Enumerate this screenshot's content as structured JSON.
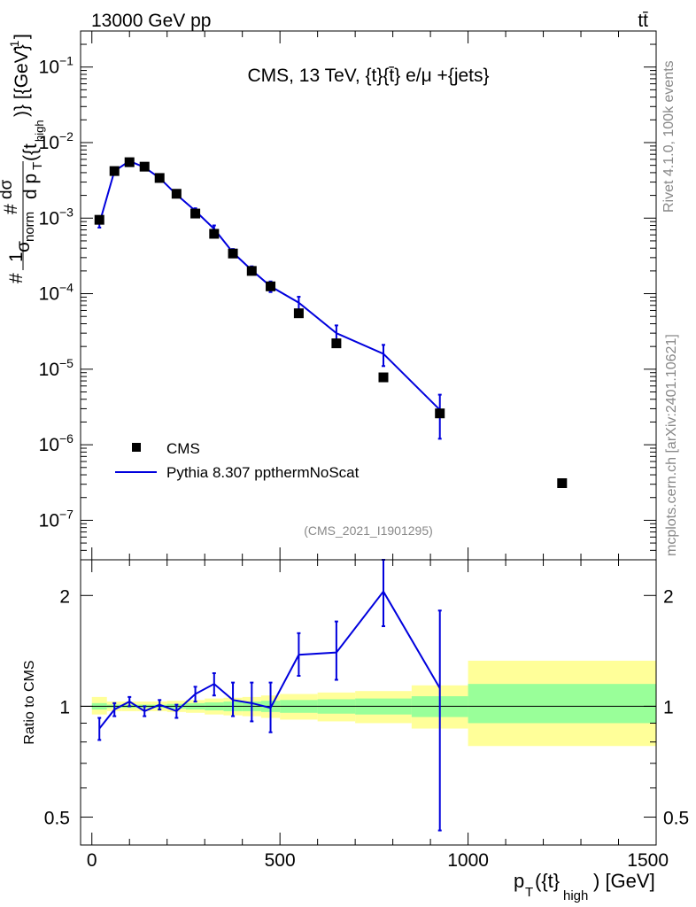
{
  "header": {
    "left": "13000 GeV pp",
    "right": "tt̄"
  },
  "side_labels": {
    "rivet": "Rivet 4.1.0,  100k events",
    "mcplots": "mcplots.cern.ch [arXiv:2401.10621]"
  },
  "chart_data": [
    {
      "type": "scatter",
      "panel": "main",
      "title": "CMS, 13 TeV, {t}{t̄} e/μ +{jets}",
      "analysis_tag": "(CMS_2021_I1901295)",
      "ylabel": "#1/σ_norm #dσ/d p_T({t}_high)} [{GeV}^-1]",
      "ylabel_parts": {
        "one": "1",
        "sigma": "σ",
        "norm": "norm",
        "dsigma": "dσ",
        "hash1": "#",
        "hash2": "#",
        "d": "d p",
        "T": "T",
        "arg": "({t",
        "high": "high",
        "tail": ")} [{GeV}",
        "exp": "-1",
        "close": "]"
      },
      "yscale": "log",
      "ylim": [
        3e-08,
        0.3
      ],
      "xlim": [
        -30,
        1500
      ],
      "y_ticks": [
        {
          "value": 1e-07,
          "base": "10",
          "exp": "−7"
        },
        {
          "value": 1e-06,
          "base": "10",
          "exp": "−6"
        },
        {
          "value": 1e-05,
          "base": "10",
          "exp": "−5"
        },
        {
          "value": 0.0001,
          "base": "10",
          "exp": "−4"
        },
        {
          "value": 0.001,
          "base": "10",
          "exp": "−3"
        },
        {
          "value": 0.01,
          "base": "10",
          "exp": "−2"
        },
        {
          "value": 0.1,
          "base": "10",
          "exp": "−1"
        }
      ],
      "legend": [
        {
          "label": "CMS",
          "marker": "square",
          "color": "#000000"
        },
        {
          "label": "Pythia 8.307 ppthermNoScat",
          "marker": "line",
          "color": "#0000dd"
        }
      ],
      "legend_position": "lower-left",
      "series": [
        {
          "name": "CMS",
          "color": "#000000",
          "x": [
            20,
            60,
            100,
            140,
            180,
            225,
            275,
            325,
            375,
            425,
            475,
            550,
            650,
            775,
            925,
            1250
          ],
          "y": [
            0.00095,
            0.0042,
            0.0055,
            0.0048,
            0.0034,
            0.0021,
            0.00115,
            0.00062,
            0.00034,
            0.0002,
            0.000125,
            5.5e-05,
            2.2e-05,
            7.8e-06,
            2.6e-06,
            3.1e-07
          ]
        },
        {
          "name": "Pythia 8.307 ppthermNoScat",
          "color": "#0000dd",
          "x": [
            20,
            60,
            100,
            140,
            180,
            225,
            275,
            325,
            375,
            425,
            475,
            550,
            650,
            775,
            925
          ],
          "y": [
            0.00085,
            0.0042,
            0.0057,
            0.0047,
            0.0034,
            0.00205,
            0.00125,
            0.00072,
            0.00035,
            0.000205,
            0.000125,
            7.6e-05,
            3e-05,
            1.6e-05,
            2.9e-06
          ],
          "err_low": [
            0.0001,
            0.0003,
            0.0003,
            0.0003,
            0.0002,
            0.00015,
            0.0001,
            8e-05,
            4e-05,
            2.5e-05,
            2e-05,
            1.5e-05,
            8e-06,
            5e-06,
            1.7e-06
          ],
          "err_high": [
            0.0001,
            0.0003,
            0.0003,
            0.0003,
            0.0002,
            0.00015,
            0.0001,
            8e-05,
            4e-05,
            2.5e-05,
            2e-05,
            1.5e-05,
            8e-06,
            5e-06,
            1.7e-06
          ]
        }
      ]
    },
    {
      "type": "line",
      "panel": "ratio",
      "ylabel": "Ratio to CMS",
      "xlabel": "p_T({t}_high) [GeV]",
      "xlabel_parts": {
        "p": "p",
        "T": "T",
        "arg": "({t}",
        "high": "high",
        "tail": ") [GeV]"
      },
      "yscale": "log",
      "ylim": [
        0.42,
        2.5
      ],
      "xlim": [
        -30,
        1500
      ],
      "x_ticks": [
        0,
        500,
        1000,
        1500
      ],
      "x_tick_labels": [
        "0",
        "500",
        "1000",
        "1500"
      ],
      "y_ticks": [
        0.5,
        1,
        2
      ],
      "y_tick_labels": [
        "0.5",
        "1",
        "2"
      ],
      "bin_edges": [
        0,
        40,
        80,
        120,
        160,
        200,
        250,
        300,
        350,
        400,
        450,
        500,
        600,
        700,
        850,
        1000,
        1500
      ],
      "band_inner_low": [
        0.98,
        0.99,
        0.99,
        0.99,
        0.99,
        0.985,
        0.98,
        0.975,
        0.97,
        0.97,
        0.965,
        0.96,
        0.955,
        0.95,
        0.935,
        0.9
      ],
      "band_inner_high": [
        1.02,
        1.01,
        1.01,
        1.01,
        1.01,
        1.015,
        1.02,
        1.025,
        1.03,
        1.03,
        1.035,
        1.04,
        1.045,
        1.05,
        1.065,
        1.15
      ],
      "band_outer_low": [
        0.95,
        0.97,
        0.97,
        0.97,
        0.97,
        0.965,
        0.96,
        0.95,
        0.945,
        0.94,
        0.93,
        0.92,
        0.91,
        0.9,
        0.87,
        0.78
      ],
      "band_outer_high": [
        1.06,
        1.03,
        1.03,
        1.03,
        1.03,
        1.035,
        1.04,
        1.05,
        1.055,
        1.06,
        1.07,
        1.08,
        1.09,
        1.1,
        1.14,
        1.33
      ],
      "band_colors": {
        "inner": "#99ff99",
        "outer": "#ffff99"
      },
      "series": [
        {
          "name": "Pythia 8.307 ppthermNoScat / CMS",
          "color": "#0000dd",
          "x": [
            20,
            60,
            100,
            140,
            180,
            225,
            275,
            325,
            375,
            425,
            475,
            550,
            650,
            775,
            925
          ],
          "y": [
            0.87,
            0.98,
            1.03,
            0.97,
            1.01,
            0.97,
            1.08,
            1.15,
            1.04,
            1.02,
            0.99,
            1.38,
            1.4,
            2.05,
            1.12
          ],
          "err_low": [
            0.06,
            0.04,
            0.03,
            0.03,
            0.03,
            0.04,
            0.05,
            0.08,
            0.1,
            0.11,
            0.14,
            0.17,
            0.22,
            0.4,
            0.66
          ],
          "err_high": [
            0.06,
            0.04,
            0.03,
            0.03,
            0.03,
            0.04,
            0.05,
            0.08,
            0.12,
            0.14,
            0.17,
            0.2,
            0.3,
            0.45,
            0.7
          ]
        }
      ]
    }
  ]
}
